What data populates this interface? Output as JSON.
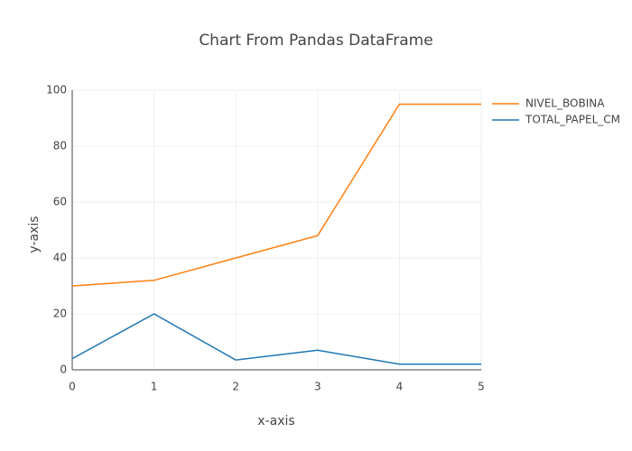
{
  "chart_data": {
    "type": "line",
    "title": "Chart From Pandas DataFrame",
    "x_label": "x-axis",
    "y_label": "y-axis",
    "x": [
      0,
      1,
      2,
      3,
      4,
      5
    ],
    "series": [
      {
        "name": "NIVEL_BOBINA",
        "color": "#ff7f0e",
        "values": [
          30,
          32,
          40,
          48,
          95,
          95
        ]
      },
      {
        "name": "TOTAL_PAPEL_CM",
        "color": "#1f77b4",
        "values": [
          4,
          20,
          3.5,
          7,
          2,
          2
        ]
      }
    ],
    "xlim": [
      0,
      5
    ],
    "xticks": [
      0,
      1,
      2,
      3,
      4,
      5
    ],
    "ylim": [
      0,
      100
    ],
    "yticks": [
      0,
      20,
      40,
      60,
      80,
      100
    ],
    "grid": true,
    "legend": "right"
  }
}
